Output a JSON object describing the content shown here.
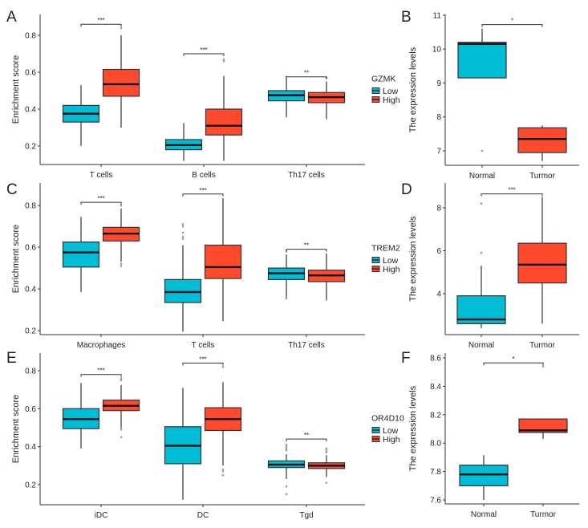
{
  "colors": {
    "Low": "#00BCD4",
    "High": "#FF4A2E",
    "Normal": "#00BCD4",
    "Tumor": "#FF4A2E",
    "outlier": "#9a9a9a"
  },
  "chart_data": [
    {
      "panel": "A",
      "type": "box",
      "ylabel": "Enrichment score",
      "ylim": [
        0.1,
        0.913
      ],
      "yticks": [
        0.2,
        0.4,
        0.6,
        0.8
      ],
      "ytick_labels": [
        "0.2",
        "0.4",
        "0.6",
        "0.8"
      ],
      "legend": {
        "title": "GZMK",
        "entries": [
          "Low",
          "High"
        ],
        "placement": "right"
      },
      "categories": [
        "T cells",
        "B cells",
        "Th17 cells"
      ],
      "series": [
        {
          "name": "Low",
          "boxes": [
            {
              "lower": 0.2,
              "q1": 0.33,
              "median": 0.375,
              "q3": 0.42,
              "upper": 0.53,
              "outliers": []
            },
            {
              "lower": 0.12,
              "q1": 0.18,
              "median": 0.205,
              "q3": 0.235,
              "upper": 0.325,
              "outliers": []
            },
            {
              "lower": 0.355,
              "q1": 0.445,
              "median": 0.475,
              "q3": 0.5,
              "upper": 0.58,
              "outliers": []
            }
          ]
        },
        {
          "name": "High",
          "boxes": [
            {
              "lower": 0.3,
              "q1": 0.47,
              "median": 0.535,
              "q3": 0.615,
              "upper": 0.8,
              "outliers": [
                0.84
              ]
            },
            {
              "lower": 0.12,
              "q1": 0.26,
              "median": 0.31,
              "q3": 0.4,
              "upper": 0.58,
              "outliers": [
                0.66,
                0.67
              ]
            },
            {
              "lower": 0.345,
              "q1": 0.435,
              "median": 0.465,
              "q3": 0.49,
              "upper": 0.55,
              "outliers": [
                0.57
              ]
            }
          ]
        }
      ],
      "significance": [
        {
          "label": "***",
          "y": 0.86
        },
        {
          "label": "***",
          "y": 0.7
        },
        {
          "label": "**",
          "y": 0.575
        }
      ]
    },
    {
      "panel": "B",
      "type": "box",
      "ylabel": "The expression levels",
      "ylim": [
        6.574,
        11.02
      ],
      "yticks": [
        7,
        8,
        9,
        10,
        11
      ],
      "ytick_labels": [
        "7",
        "8",
        "9",
        "10",
        "11"
      ],
      "categories": [
        "Normal",
        "Turmor"
      ],
      "boxes": [
        {
          "group": "Normal",
          "lower": 9.15,
          "q1": 9.15,
          "median": 10.15,
          "q3": 10.2,
          "upper": 10.6,
          "outliers": [
            7.0
          ]
        },
        {
          "group": "Tumor",
          "lower": 6.7,
          "q1": 6.95,
          "median": 7.35,
          "q3": 7.68,
          "upper": 7.75,
          "outliers": []
        }
      ],
      "significance": [
        {
          "label": "*",
          "y": 10.72
        }
      ]
    },
    {
      "panel": "C",
      "type": "box",
      "ylabel": "Enrichment score",
      "ylim": [
        0.181,
        0.908
      ],
      "yticks": [
        0.2,
        0.4,
        0.6,
        0.8
      ],
      "ytick_labels": [
        "0.2",
        "0.4",
        "0.6",
        "0.8"
      ],
      "legend": {
        "title": "TREM2",
        "entries": [
          "Low",
          "High"
        ],
        "placement": "right"
      },
      "categories": [
        "Macrophages",
        "T cells",
        "Th17 cells"
      ],
      "series": [
        {
          "name": "Low",
          "boxes": [
            {
              "lower": 0.385,
              "q1": 0.505,
              "median": 0.575,
              "q3": 0.625,
              "upper": 0.745,
              "outliers": []
            },
            {
              "lower": 0.195,
              "q1": 0.335,
              "median": 0.385,
              "q3": 0.445,
              "upper": 0.61,
              "outliers": [
                0.64,
                0.65,
                0.67,
                0.7,
                0.71
              ]
            },
            {
              "lower": 0.36,
              "q1": 0.445,
              "median": 0.475,
              "q3": 0.5,
              "upper": 0.565,
              "outliers": [
                0.355,
                0.58
              ]
            }
          ]
        },
        {
          "name": "High",
          "boxes": [
            {
              "lower": 0.53,
              "q1": 0.63,
              "median": 0.665,
              "q3": 0.695,
              "upper": 0.785,
              "outliers": [
                0.51,
                0.52,
                0.8
              ]
            },
            {
              "lower": 0.245,
              "q1": 0.45,
              "median": 0.505,
              "q3": 0.61,
              "upper": 0.835,
              "outliers": []
            },
            {
              "lower": 0.345,
              "q1": 0.435,
              "median": 0.465,
              "q3": 0.49,
              "upper": 0.57,
              "outliers": []
            }
          ]
        }
      ],
      "significance": [
        {
          "label": "***",
          "y": 0.815
        },
        {
          "label": "***",
          "y": 0.855
        },
        {
          "label": "**",
          "y": 0.59
        }
      ]
    },
    {
      "panel": "D",
      "type": "box",
      "ylabel": "The expression levels",
      "ylim": [
        2.09,
        9.16
      ],
      "yticks": [
        4,
        6,
        8
      ],
      "ytick_labels": [
        "4",
        "6",
        "8"
      ],
      "categories": [
        "Normal",
        "Turmor"
      ],
      "boxes": [
        {
          "group": "Normal",
          "lower": 2.4,
          "q1": 2.6,
          "median": 2.8,
          "q3": 3.9,
          "upper": 5.3,
          "outliers": [
            5.9,
            8.2
          ]
        },
        {
          "group": "Tumor",
          "lower": 2.6,
          "q1": 4.5,
          "median": 5.35,
          "q3": 6.35,
          "upper": 8.5,
          "outliers": []
        }
      ],
      "significance": [
        {
          "label": "***",
          "y": 8.65
        }
      ]
    },
    {
      "panel": "E",
      "type": "box",
      "ylabel": "Enrichment score",
      "ylim": [
        0.094,
        0.893
      ],
      "yticks": [
        0.2,
        0.4,
        0.6,
        0.8
      ],
      "ytick_labels": [
        "0.2",
        "0.4",
        "0.6",
        "0.8"
      ],
      "legend": {
        "title": "OR4D10",
        "entries": [
          "Low",
          "High"
        ],
        "placement": "right"
      },
      "categories": [
        "iDC",
        "DC",
        "Tgd"
      ],
      "series": [
        {
          "name": "Low",
          "boxes": [
            {
              "lower": 0.39,
              "q1": 0.495,
              "median": 0.545,
              "q3": 0.6,
              "upper": 0.735,
              "outliers": []
            },
            {
              "lower": 0.12,
              "q1": 0.31,
              "median": 0.405,
              "q3": 0.505,
              "upper": 0.71,
              "outliers": []
            },
            {
              "lower": 0.23,
              "q1": 0.29,
              "median": 0.305,
              "q3": 0.325,
              "upper": 0.36,
              "outliers": [
                0.15,
                0.19,
                0.38,
                0.39,
                0.4,
                0.41
              ]
            }
          ]
        },
        {
          "name": "High",
          "boxes": [
            {
              "lower": 0.5,
              "q1": 0.59,
              "median": 0.615,
              "q3": 0.645,
              "upper": 0.725,
              "outliers": [
                0.45,
                0.49,
                0.5,
                0.75,
                0.76
              ]
            },
            {
              "lower": 0.3,
              "q1": 0.485,
              "median": 0.545,
              "q3": 0.605,
              "upper": 0.74,
              "outliers": [
                0.25,
                0.27,
                0.28,
                0.82
              ]
            },
            {
              "lower": 0.24,
              "q1": 0.285,
              "median": 0.3,
              "q3": 0.315,
              "upper": 0.355,
              "outliers": [
                0.21,
                0.37,
                0.38,
                0.39
              ]
            }
          ]
        }
      ],
      "significance": [
        {
          "label": "***",
          "y": 0.78
        },
        {
          "label": "***",
          "y": 0.84
        },
        {
          "label": "**",
          "y": 0.44
        }
      ]
    },
    {
      "panel": "F",
      "type": "box",
      "ylabel": "The expression levels",
      "ylim": [
        7.572,
        8.634
      ],
      "yticks": [
        7.6,
        7.8,
        8.0,
        8.2,
        8.4,
        8.6
      ],
      "ytick_labels": [
        "7.6",
        "7.8",
        "8.0",
        "8.2",
        "8.4",
        "8.6"
      ],
      "categories": [
        "Normal",
        "Turmor"
      ],
      "boxes": [
        {
          "group": "Normal",
          "lower": 7.6,
          "q1": 7.7,
          "median": 7.78,
          "q3": 7.845,
          "upper": 7.915,
          "outliers": []
        },
        {
          "group": "Tumor",
          "lower": 8.03,
          "q1": 8.075,
          "median": 8.09,
          "q3": 8.17,
          "upper": 8.17,
          "outliers": [
            8.54
          ]
        }
      ],
      "significance": [
        {
          "label": "*",
          "y": 8.565
        }
      ]
    }
  ]
}
